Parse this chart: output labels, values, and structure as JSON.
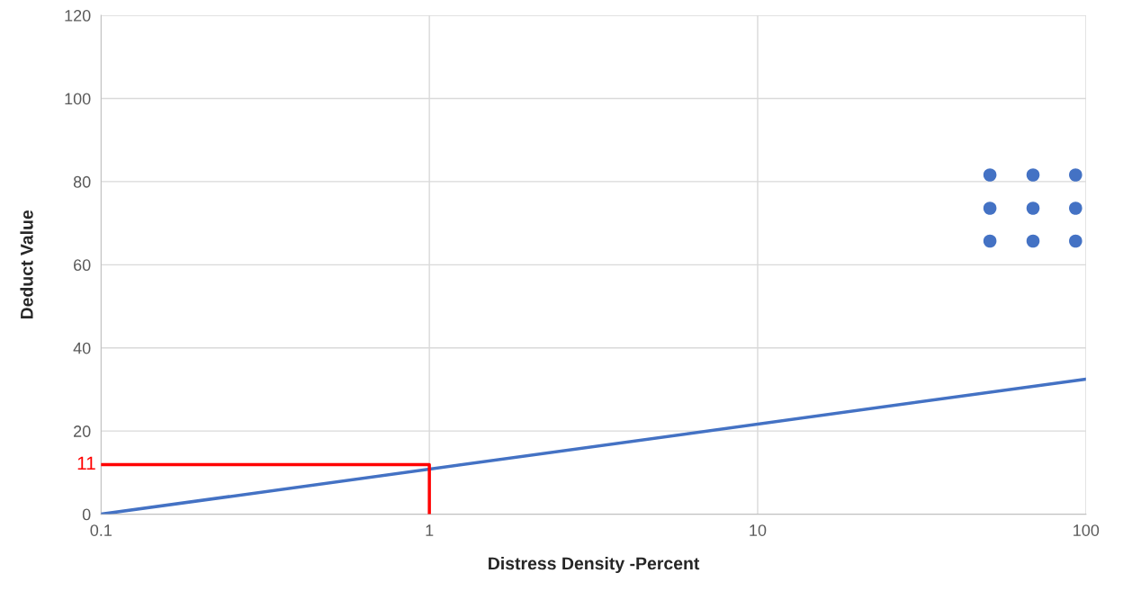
{
  "chart_data": {
    "type": "line",
    "xlabel": "Distress Density -Percent",
    "ylabel": "Deduct Value",
    "log": "x",
    "xlim": [
      0.1,
      100
    ],
    "xticks": [
      0.1,
      1,
      10,
      100
    ],
    "ylim": [
      0,
      120
    ],
    "yticks": [
      0,
      20,
      40,
      60,
      80,
      100,
      120
    ],
    "grid": true,
    "legend": false,
    "series": [
      {
        "color": "#4472c4",
        "x": [
          0.1,
          100
        ],
        "values": [
          0,
          32.5
        ]
      },
      {
        "color": "#ff0000",
        "x": [
          0.1,
          1,
          1
        ],
        "values": [
          11.9,
          11.9,
          0
        ]
      },
      {
        "type": "scatter",
        "color": "#4472c4",
        "marker": "circle",
        "x": [
          51,
          69,
          93,
          51,
          69,
          93,
          51,
          69,
          93
        ],
        "values": [
          81.6,
          81.6,
          81.6,
          73.6,
          73.6,
          73.6,
          65.7,
          65.7,
          65.7
        ]
      }
    ],
    "annotations": [
      {
        "text": "11",
        "x": 0.1,
        "y": 11.9
      }
    ]
  }
}
